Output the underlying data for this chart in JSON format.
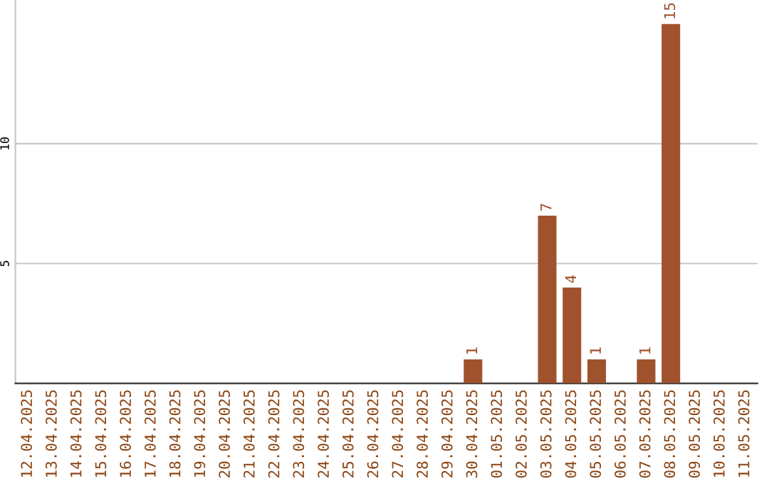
{
  "chart_data": {
    "type": "bar",
    "categories": [
      "12.04.2025",
      "13.04.2025",
      "14.04.2025",
      "15.04.2025",
      "16.04.2025",
      "17.04.2025",
      "18.04.2025",
      "19.04.2025",
      "20.04.2025",
      "21.04.2025",
      "22.04.2025",
      "23.04.2025",
      "24.04.2025",
      "25.04.2025",
      "26.04.2025",
      "27.04.2025",
      "28.04.2025",
      "29.04.2025",
      "30.04.2025",
      "01.05.2025",
      "02.05.2025",
      "03.05.2025",
      "04.05.2025",
      "05.05.2025",
      "06.05.2025",
      "07.05.2025",
      "08.05.2025",
      "09.05.2025",
      "10.05.2025",
      "11.05.2025"
    ],
    "values": [
      0,
      0,
      0,
      0,
      0,
      0,
      0,
      0,
      0,
      0,
      0,
      0,
      0,
      0,
      0,
      0,
      0,
      0,
      1,
      0,
      0,
      7,
      4,
      1,
      0,
      1,
      15,
      0,
      0,
      0
    ],
    "value_labels": [
      null,
      null,
      null,
      null,
      null,
      null,
      null,
      null,
      null,
      null,
      null,
      null,
      null,
      null,
      null,
      null,
      null,
      null,
      "1",
      null,
      null,
      "7",
      "4",
      "1",
      null,
      "1",
      "15",
      null,
      null,
      null
    ],
    "color": "#a0522d",
    "ylim": [
      0,
      16
    ],
    "yticks": [
      5,
      10
    ],
    "grid": "y"
  }
}
